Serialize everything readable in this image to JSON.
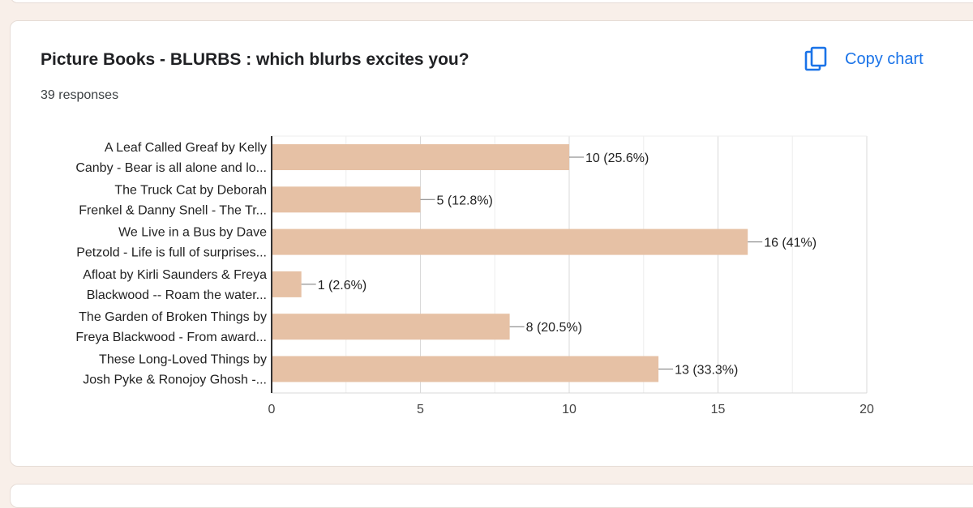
{
  "title": "Picture Books - BLURBS : which blurbs excites you?",
  "responses": "39 responses",
  "copy_chart_label": "Copy chart",
  "colors": {
    "bar": "#e6c1a5",
    "accent": "#1a73e8"
  },
  "chart_data": {
    "type": "bar",
    "orientation": "horizontal",
    "categories": [
      [
        "A Leaf Called Greaf by Kelly",
        "Canby - Bear is all alone and lo..."
      ],
      [
        "The Truck Cat by Deborah",
        "Frenkel & Danny Snell - The Tr..."
      ],
      [
        "We Live in a Bus by Dave",
        "Petzold - Life is full of surprises..."
      ],
      [
        "Afloat by Kirli Saunders & Freya",
        "Blackwood -- Roam the water..."
      ],
      [
        "The Garden of Broken Things by",
        "Freya Blackwood - From award..."
      ],
      [
        "These Long-Loved Things by",
        "Josh Pyke & Ronojoy Ghosh -..."
      ]
    ],
    "values": [
      10,
      5,
      16,
      1,
      8,
      13
    ],
    "value_labels": [
      "10 (25.6%)",
      "5 (12.8%)",
      "16 (41%)",
      "1 (2.6%)",
      "8 (20.5%)",
      "13 (33.3%)"
    ],
    "xlim": [
      0,
      20
    ],
    "xticks": [
      0,
      5,
      10,
      15,
      20
    ],
    "grid": true
  }
}
